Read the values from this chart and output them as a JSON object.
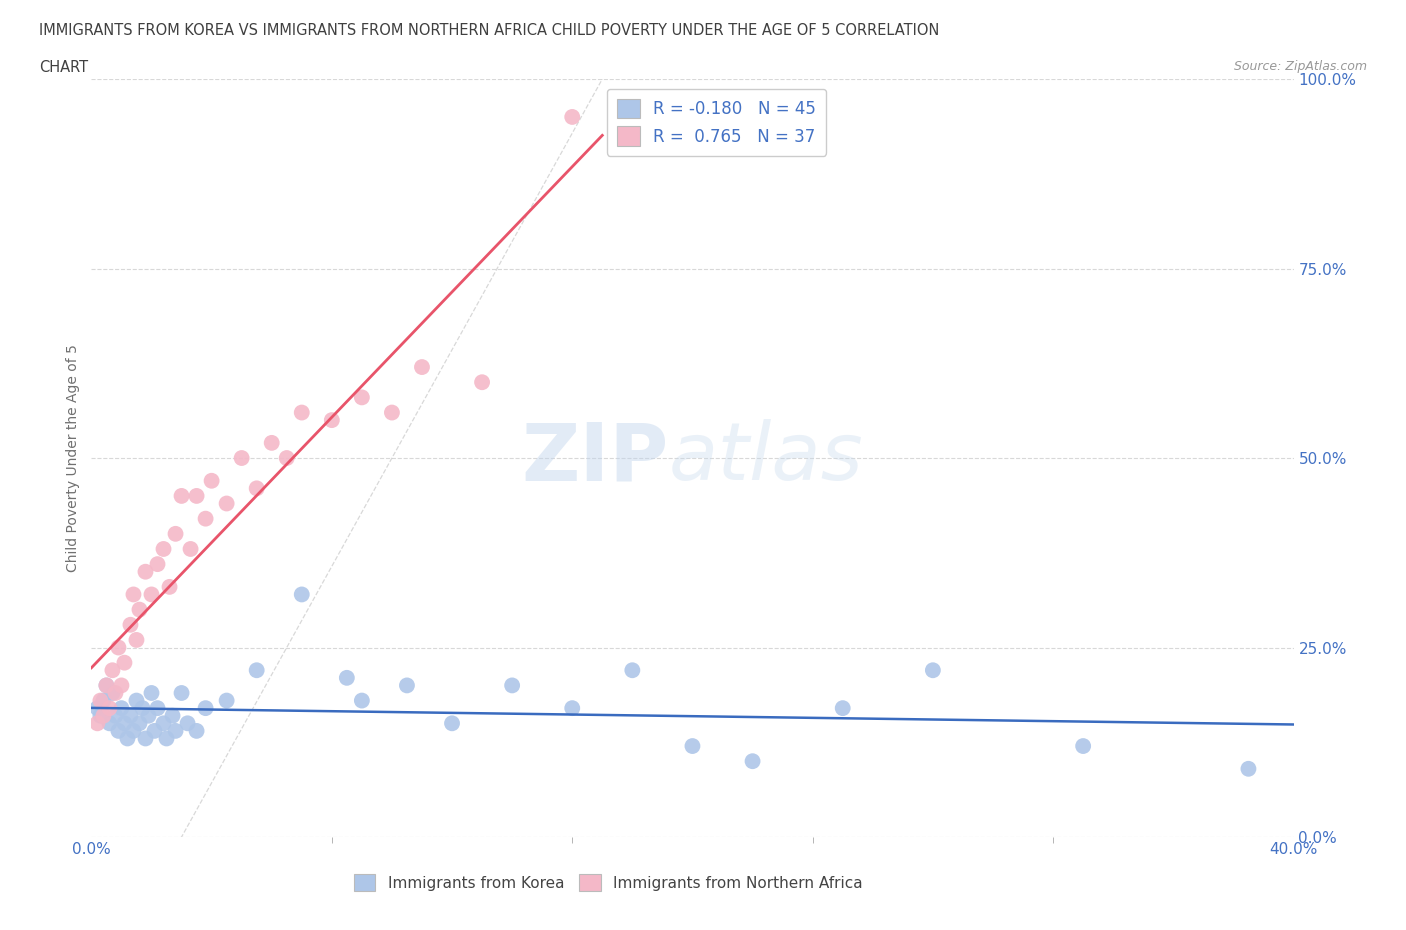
{
  "title_line1": "IMMIGRANTS FROM KOREA VS IMMIGRANTS FROM NORTHERN AFRICA CHILD POVERTY UNDER THE AGE OF 5 CORRELATION",
  "title_line2": "CHART",
  "source": "Source: ZipAtlas.com",
  "ylabel": "Child Poverty Under the Age of 5",
  "ytick_values": [
    0,
    25,
    50,
    75,
    100
  ],
  "xtick_values": [
    0,
    40
  ],
  "legend_r_entries": [
    {
      "label": "R = -0.180   N = 45",
      "color": "#aec6e8"
    },
    {
      "label": "R =  0.765   N = 37",
      "color": "#f4b8c8"
    }
  ],
  "legend_labels": [
    "Immigrants from Korea",
    "Immigrants from Northern Africa"
  ],
  "korea_color": "#aec6e8",
  "africa_color": "#f4b8c8",
  "korea_line_color": "#3a6bbf",
  "africa_line_color": "#e8546a",
  "diagonal_color": "#c8c8c8",
  "korea_scatter_x": [
    0.2,
    0.3,
    0.4,
    0.5,
    0.6,
    0.7,
    0.8,
    0.9,
    1.0,
    1.1,
    1.2,
    1.3,
    1.4,
    1.5,
    1.6,
    1.7,
    1.8,
    1.9,
    2.0,
    2.1,
    2.2,
    2.4,
    2.5,
    2.7,
    2.8,
    3.0,
    3.2,
    3.5,
    3.8,
    4.5,
    5.5,
    7.0,
    8.5,
    9.0,
    10.5,
    12.0,
    14.0,
    16.0,
    18.0,
    20.0,
    22.0,
    25.0,
    28.0,
    33.0,
    38.5
  ],
  "korea_scatter_y": [
    17,
    16,
    18,
    20,
    15,
    19,
    16,
    14,
    17,
    15,
    13,
    16,
    14,
    18,
    15,
    17,
    13,
    16,
    19,
    14,
    17,
    15,
    13,
    16,
    14,
    19,
    15,
    14,
    17,
    18,
    22,
    32,
    21,
    18,
    20,
    15,
    20,
    17,
    22,
    12,
    10,
    17,
    22,
    12,
    9
  ],
  "africa_scatter_x": [
    0.2,
    0.3,
    0.4,
    0.5,
    0.6,
    0.7,
    0.8,
    0.9,
    1.0,
    1.1,
    1.3,
    1.4,
    1.5,
    1.6,
    1.8,
    2.0,
    2.2,
    2.4,
    2.6,
    2.8,
    3.0,
    3.3,
    3.5,
    3.8,
    4.0,
    4.5,
    5.0,
    5.5,
    6.0,
    6.5,
    7.0,
    8.0,
    9.0,
    10.0,
    11.0,
    13.0,
    16.0
  ],
  "africa_scatter_y": [
    15,
    18,
    16,
    20,
    17,
    22,
    19,
    25,
    20,
    23,
    28,
    32,
    26,
    30,
    35,
    32,
    36,
    38,
    33,
    40,
    45,
    38,
    45,
    42,
    47,
    44,
    50,
    46,
    52,
    50,
    56,
    55,
    58,
    56,
    62,
    60,
    95
  ],
  "korea_size": 130,
  "africa_size": 130,
  "background_color": "#ffffff",
  "plot_bg_color": "#ffffff",
  "grid_color": "#d8d8d8",
  "title_color": "#404040",
  "axis_label_color": "#4472c4",
  "ylabel_color": "#707070"
}
